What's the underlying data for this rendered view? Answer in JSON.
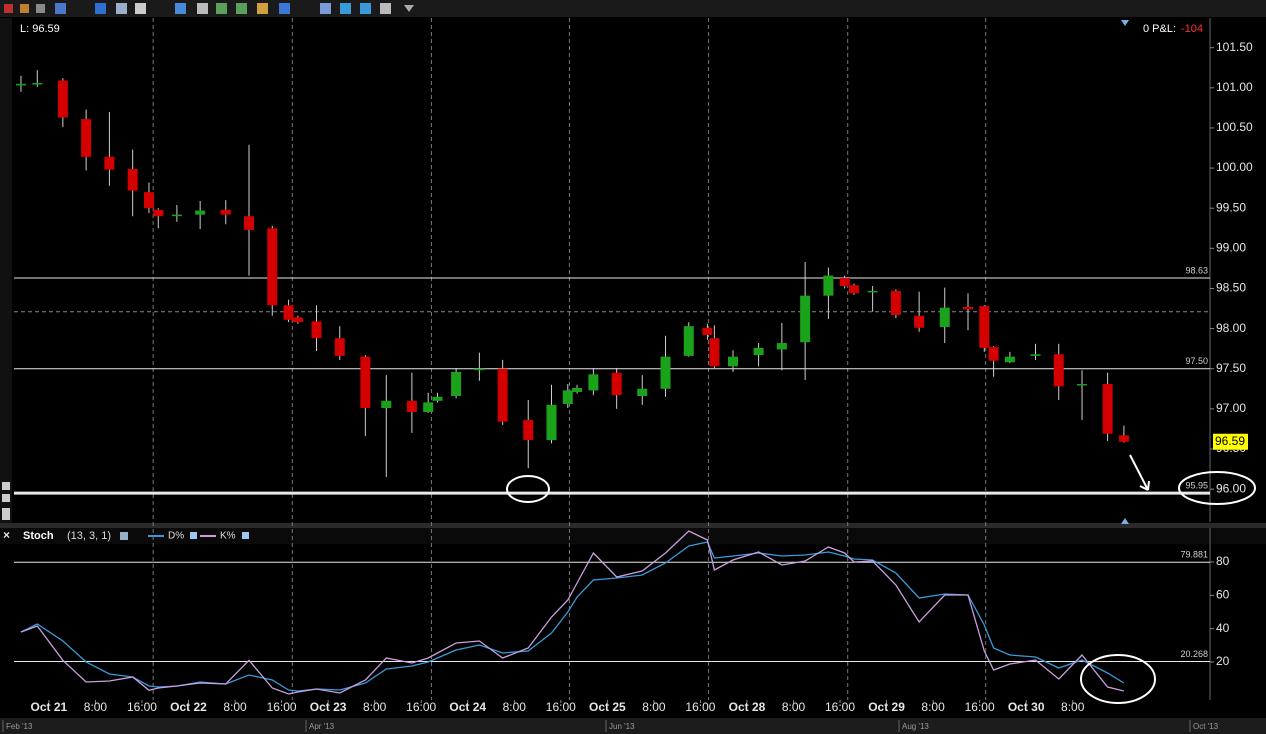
{
  "header": {
    "last": "L: 96.59",
    "pnl_label": "0 P&L:",
    "pnl_value": "-104"
  },
  "overview": {
    "labels": [
      "Feb '13",
      "Apr '13",
      "Jun '13",
      "Aug '13",
      "Oct '13"
    ]
  },
  "chart_data": [
    {
      "type": "candlestick",
      "up_color": "#1aa31a",
      "down_color": "#d40000",
      "x": [
        0.3,
        1.0,
        2.1,
        3.1,
        4.1,
        5.1,
        5.8,
        6.2,
        7.0,
        8.0,
        9.1,
        10.1,
        11.1,
        11.8,
        12.2,
        13.0,
        14.0,
        15.1,
        16.0,
        17.1,
        17.8,
        18.2,
        19.0,
        20.0,
        21.0,
        22.1,
        23.1,
        23.8,
        24.2,
        24.9,
        25.9,
        27.0,
        28.0,
        29.0,
        29.8,
        30.1,
        30.9,
        32.0,
        33.0,
        34.0,
        35.0,
        35.7,
        36.1,
        36.9,
        37.9,
        38.9,
        40.0,
        41.0,
        41.7,
        42.1,
        42.8,
        43.9,
        44.9,
        45.9,
        47.0,
        47.7
      ],
      "open": [
        101.03,
        101.05,
        101.09,
        100.61,
        100.14,
        99.99,
        99.7,
        99.48,
        99.41,
        99.42,
        99.48,
        99.4,
        99.25,
        98.29,
        98.14,
        98.09,
        97.88,
        97.65,
        97.01,
        97.1,
        96.96,
        97.1,
        97.16,
        97.49,
        97.5,
        96.86,
        96.61,
        97.06,
        97.21,
        97.23,
        97.45,
        97.16,
        97.25,
        97.66,
        98.01,
        97.88,
        97.53,
        97.67,
        97.74,
        97.83,
        98.41,
        98.63,
        98.54,
        98.46,
        98.47,
        98.16,
        98.02,
        98.27,
        98.28,
        97.77,
        97.58,
        97.66,
        97.68,
        97.3,
        97.31,
        96.67
      ],
      "high": [
        101.15,
        101.22,
        101.12,
        100.73,
        100.7,
        100.23,
        99.82,
        99.5,
        99.54,
        99.59,
        99.6,
        100.29,
        99.28,
        98.36,
        98.16,
        98.29,
        98.03,
        97.67,
        97.42,
        97.45,
        97.2,
        97.2,
        97.51,
        97.7,
        97.61,
        97.11,
        97.3,
        97.31,
        97.3,
        97.51,
        97.51,
        97.42,
        97.91,
        98.08,
        98.06,
        98.04,
        97.73,
        97.82,
        98.07,
        98.83,
        98.76,
        98.66,
        98.56,
        98.53,
        98.49,
        98.46,
        98.51,
        98.44,
        98.29,
        97.78,
        97.71,
        97.81,
        97.81,
        97.48,
        97.45,
        96.79
      ],
      "low": [
        100.95,
        101.01,
        100.51,
        99.97,
        99.78,
        99.4,
        99.44,
        99.25,
        99.33,
        99.24,
        99.3,
        98.66,
        98.16,
        98.08,
        98.06,
        97.72,
        97.61,
        96.66,
        96.15,
        96.7,
        96.95,
        97.08,
        97.13,
        97.35,
        96.8,
        96.26,
        96.57,
        97.01,
        97.19,
        97.17,
        97.0,
        97.05,
        97.15,
        97.65,
        97.86,
        97.51,
        97.46,
        97.53,
        97.48,
        97.36,
        98.12,
        98.5,
        98.42,
        98.21,
        98.13,
        97.96,
        97.82,
        97.98,
        97.71,
        97.4,
        97.57,
        97.61,
        97.11,
        96.86,
        96.6,
        96.58
      ],
      "close": [
        101.05,
        101.06,
        100.63,
        100.14,
        99.98,
        99.72,
        99.5,
        99.4,
        99.42,
        99.47,
        99.42,
        99.23,
        98.29,
        98.11,
        98.08,
        97.88,
        97.66,
        97.01,
        97.1,
        96.96,
        97.08,
        97.15,
        97.46,
        97.5,
        96.84,
        96.61,
        97.05,
        97.23,
        97.26,
        97.43,
        97.17,
        97.25,
        97.65,
        98.03,
        97.92,
        97.53,
        97.65,
        97.76,
        97.82,
        98.41,
        98.66,
        98.53,
        98.44,
        98.47,
        98.17,
        98.01,
        98.26,
        98.24,
        97.76,
        97.6,
        97.65,
        97.68,
        97.28,
        97.31,
        96.69,
        96.59
      ],
      "xlim": [
        0,
        51.4
      ],
      "ylim": [
        95.59,
        101.87
      ],
      "yticks": [
        {
          "value": 96,
          "label": "96.00"
        },
        {
          "value": 96.5,
          "label": "96.50"
        },
        {
          "value": 97,
          "label": "97.00"
        },
        {
          "value": 97.5,
          "label": "97.50"
        },
        {
          "value": 98,
          "label": "98.00"
        },
        {
          "value": 98.5,
          "label": "98.50"
        },
        {
          "value": 99,
          "label": "99.00"
        },
        {
          "value": 99.5,
          "label": "99.50"
        },
        {
          "value": 100,
          "label": "100.00"
        },
        {
          "value": 100.5,
          "label": "100.50"
        },
        {
          "value": 101,
          "label": "101.00"
        },
        {
          "value": 101.5,
          "label": "101.50"
        }
      ],
      "session_lines": [
        5.98,
        11.96,
        17.94,
        23.87,
        29.85,
        35.83,
        41.76
      ],
      "levels": [
        {
          "value": 98.63,
          "label": "98.63"
        },
        {
          "value": 97.5,
          "label": "97.50"
        },
        {
          "value": 95.95,
          "label": "95.95",
          "bold": true
        }
      ],
      "dashed_level": 98.21,
      "price_tag": {
        "value": 96.59,
        "label": "96.59",
        "color": "#ffff00"
      }
    },
    {
      "type": "line",
      "title": "Stoch",
      "subtitle": "(13, 3, 1)",
      "x": [
        0.3,
        1.0,
        2.1,
        3.1,
        4.1,
        5.1,
        5.8,
        6.2,
        7.0,
        8.0,
        9.1,
        10.1,
        11.1,
        11.8,
        12.2,
        13.0,
        14.0,
        15.1,
        16.0,
        17.1,
        17.8,
        18.2,
        19.0,
        20.0,
        21.0,
        22.1,
        23.1,
        23.8,
        24.2,
        24.9,
        25.9,
        27.0,
        28.0,
        29.0,
        29.8,
        30.1,
        30.9,
        32.0,
        33.0,
        34.0,
        35.0,
        35.7,
        36.1,
        36.9,
        37.9,
        38.9,
        40.0,
        41.0,
        41.7,
        42.1,
        42.8,
        43.9,
        44.9,
        45.9,
        47.0,
        47.7
      ],
      "series": [
        {
          "name": "D%",
          "color": "#3a9ad9",
          "values": [
            38,
            42.8,
            32.6,
            20,
            12.8,
            11,
            5.6,
            5,
            5.6,
            8,
            6.8,
            12.2,
            9.2,
            3.2,
            2.6,
            3.8,
            3.2,
            7.4,
            15.8,
            17.6,
            20,
            22.4,
            27.2,
            30.2,
            25.4,
            26.6,
            37.4,
            50,
            59,
            69.2,
            70.4,
            72.2,
            79.4,
            89.6,
            92,
            82.4,
            83.6,
            85.4,
            83.6,
            84.2,
            86,
            83.6,
            81.8,
            81.2,
            73.4,
            58.4,
            60.8,
            60.2,
            42.2,
            28.4,
            24.2,
            23,
            16.4,
            21.2,
            13.4,
            7.4
          ]
        },
        {
          "name": "K%",
          "color": "#c9a0dc",
          "values": [
            38,
            41.6,
            21,
            8,
            8.6,
            11,
            3,
            4.4,
            5.6,
            7.4,
            6.8,
            21,
            4.4,
            0.8,
            2,
            3.8,
            1.4,
            9.2,
            22.4,
            19.4,
            22.4,
            25.4,
            31.4,
            32.6,
            22.4,
            28.4,
            47,
            57.2,
            67.4,
            85.4,
            71,
            74.6,
            85.4,
            98.6,
            93.2,
            75.2,
            81.2,
            86,
            78.2,
            80.6,
            89,
            85.4,
            80,
            80.6,
            66.2,
            44,
            60.2,
            60.2,
            26.6,
            15.2,
            18.8,
            21.2,
            9.8,
            24.2,
            5,
            2.6
          ]
        }
      ],
      "xlim": [
        0,
        51.4
      ],
      "ylim": [
        -2.8,
        100.4
      ],
      "yticks": [
        20,
        40,
        60,
        80
      ],
      "levels": [
        {
          "value": 79.881,
          "label": "79.881"
        },
        {
          "value": 20.268,
          "label": "20.268"
        }
      ],
      "xticks": [
        {
          "value": 1.5,
          "label": "Oct 21"
        },
        {
          "value": 3.5,
          "label": "8:00"
        },
        {
          "value": 5.5,
          "label": "16:00"
        },
        {
          "value": 7.5,
          "label": "Oct 22"
        },
        {
          "value": 9.5,
          "label": "8:00"
        },
        {
          "value": 11.5,
          "label": "16:00"
        },
        {
          "value": 13.5,
          "label": "Oct 23"
        },
        {
          "value": 15.5,
          "label": "8:00"
        },
        {
          "value": 17.5,
          "label": "16:00"
        },
        {
          "value": 19.5,
          "label": "Oct 24"
        },
        {
          "value": 21.5,
          "label": "8:00"
        },
        {
          "value": 23.5,
          "label": "16:00"
        },
        {
          "value": 25.5,
          "label": "Oct 25"
        },
        {
          "value": 27.5,
          "label": "8:00"
        },
        {
          "value": 29.5,
          "label": "16:00"
        },
        {
          "value": 31.5,
          "label": "Oct 28"
        },
        {
          "value": 33.5,
          "label": "8:00"
        },
        {
          "value": 35.5,
          "label": "16:00"
        },
        {
          "value": 37.5,
          "label": "Oct 29"
        },
        {
          "value": 39.5,
          "label": "8:00"
        },
        {
          "value": 41.5,
          "label": "16:00"
        },
        {
          "value": 43.5,
          "label": "Oct 30"
        },
        {
          "value": 45.5,
          "label": "8:00"
        }
      ]
    }
  ]
}
